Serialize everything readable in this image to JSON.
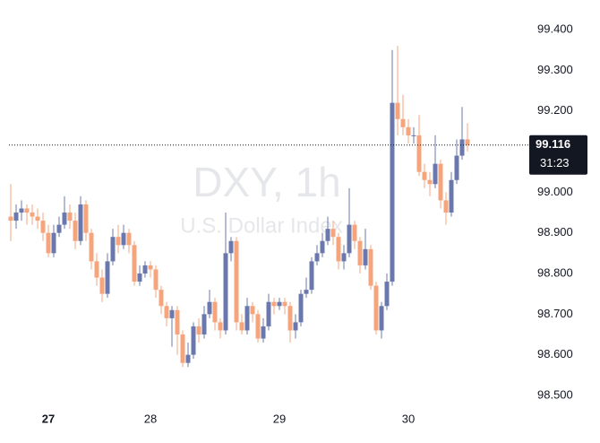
{
  "chart_data": {
    "type": "candlestick",
    "watermark_title": "DXY, 1h",
    "watermark_subtitle": "U.S. Dollar Index",
    "categories": [
      null,
      null,
      null,
      null,
      null,
      null,
      null,
      "27",
      null,
      null,
      null,
      null,
      null,
      null,
      null,
      null,
      null,
      null,
      null,
      null,
      null,
      null,
      null,
      null,
      null,
      null,
      "28",
      null,
      null,
      null,
      null,
      null,
      null,
      null,
      null,
      null,
      null,
      null,
      null,
      null,
      null,
      null,
      null,
      null,
      null,
      null,
      null,
      null,
      null,
      null,
      "29",
      null,
      null,
      null,
      null,
      null,
      null,
      null,
      null,
      null,
      null,
      null,
      null,
      null,
      null,
      null,
      null,
      null,
      null,
      null,
      null,
      null,
      null,
      null,
      "30",
      null,
      null,
      null,
      null,
      null,
      null,
      null,
      null,
      null,
      null,
      null
    ],
    "open": [
      98.94,
      98.93,
      98.95,
      98.96,
      98.95,
      98.94,
      98.93,
      98.9,
      98.85,
      98.9,
      98.92,
      98.95,
      98.93,
      98.88,
      98.97,
      98.9,
      98.83,
      98.79,
      98.75,
      98.83,
      98.89,
      98.87,
      98.9,
      98.87,
      98.78,
      98.8,
      98.82,
      98.81,
      98.76,
      98.72,
      98.69,
      98.71,
      98.65,
      98.58,
      98.6,
      98.67,
      98.65,
      98.7,
      98.73,
      98.68,
      98.66,
      98.85,
      98.88,
      98.68,
      98.66,
      98.72,
      98.7,
      98.64,
      98.67,
      98.73,
      98.72,
      98.73,
      98.72,
      98.66,
      98.68,
      98.75,
      98.76,
      98.83,
      98.85,
      98.88,
      98.91,
      98.89,
      98.83,
      98.85,
      98.92,
      98.88,
      98.82,
      98.86,
      98.77,
      98.66,
      98.72,
      98.78,
      99.22,
      99.18,
      99.16,
      99.14,
      99.14,
      99.05,
      99.03,
      99.02,
      99.07,
      98.98,
      98.95,
      99.03,
      99.09,
      99.13
    ],
    "high": [
      99.02,
      98.97,
      98.98,
      98.97,
      98.97,
      98.96,
      98.95,
      98.92,
      98.92,
      98.94,
      98.99,
      98.97,
      98.95,
      98.99,
      98.98,
      98.91,
      98.85,
      98.81,
      98.85,
      98.91,
      98.92,
      98.92,
      98.91,
      98.88,
      98.82,
      98.83,
      98.83,
      98.82,
      98.77,
      98.73,
      98.72,
      98.72,
      98.66,
      98.63,
      98.68,
      98.69,
      98.72,
      98.76,
      98.74,
      98.69,
      98.95,
      98.89,
      98.89,
      98.7,
      98.74,
      98.73,
      98.71,
      98.69,
      98.75,
      98.74,
      98.74,
      98.74,
      98.73,
      98.7,
      98.76,
      98.79,
      98.84,
      98.87,
      98.9,
      98.94,
      98.93,
      98.9,
      98.87,
      99.01,
      98.93,
      98.89,
      98.91,
      98.87,
      98.78,
      98.73,
      98.8,
      99.35,
      99.36,
      99.24,
      99.18,
      99.16,
      99.19,
      99.07,
      99.05,
      99.14,
      99.08,
      99.0,
      99.05,
      99.13,
      99.21,
      99.17
    ],
    "low": [
      98.88,
      98.91,
      98.93,
      98.92,
      98.92,
      98.91,
      98.88,
      98.84,
      98.84,
      98.89,
      98.91,
      98.91,
      98.86,
      98.87,
      98.88,
      98.81,
      98.77,
      98.73,
      98.74,
      98.82,
      98.85,
      98.86,
      98.85,
      98.77,
      98.77,
      98.79,
      98.79,
      98.74,
      98.7,
      98.67,
      98.62,
      98.6,
      98.57,
      98.57,
      98.59,
      98.63,
      98.64,
      98.69,
      98.66,
      98.64,
      98.65,
      98.83,
      98.66,
      98.65,
      98.65,
      98.68,
      98.63,
      98.63,
      98.66,
      98.7,
      98.71,
      98.7,
      98.63,
      98.64,
      98.67,
      98.74,
      98.75,
      98.82,
      98.84,
      98.87,
      98.87,
      98.81,
      98.81,
      98.84,
      98.86,
      98.8,
      98.81,
      98.76,
      98.65,
      98.64,
      98.71,
      98.77,
      99.14,
      99.14,
      99.12,
      99.12,
      99.04,
      99.01,
      98.99,
      99.01,
      98.96,
      98.92,
      98.94,
      99.02,
      99.08,
      99.1
    ],
    "close": [
      98.93,
      98.95,
      98.96,
      98.95,
      98.94,
      98.93,
      98.9,
      98.85,
      98.9,
      98.92,
      98.95,
      98.93,
      98.88,
      98.97,
      98.9,
      98.83,
      98.79,
      98.75,
      98.83,
      98.89,
      98.87,
      98.9,
      98.87,
      98.78,
      98.8,
      98.82,
      98.81,
      98.76,
      98.72,
      98.69,
      98.71,
      98.65,
      98.58,
      98.6,
      98.67,
      98.65,
      98.7,
      98.73,
      98.68,
      98.66,
      98.85,
      98.88,
      98.68,
      98.66,
      98.72,
      98.7,
      98.64,
      98.67,
      98.73,
      98.72,
      98.73,
      98.72,
      98.66,
      98.68,
      98.75,
      98.76,
      98.83,
      98.85,
      98.88,
      98.91,
      98.89,
      98.83,
      98.85,
      98.92,
      98.88,
      98.82,
      98.86,
      98.77,
      98.66,
      98.72,
      98.78,
      99.22,
      99.18,
      99.16,
      99.14,
      99.14,
      99.05,
      99.03,
      99.02,
      99.07,
      98.98,
      98.95,
      99.03,
      99.09,
      99.13,
      99.116
    ],
    "up_color": "#6b78ad",
    "down_color": "#f5a47c",
    "ylim": [
      98.469,
      99.473
    ],
    "yticks": [
      {
        "value": 98.5,
        "label": "98.500"
      },
      {
        "value": 98.6,
        "label": "98.600"
      },
      {
        "value": 98.7,
        "label": "98.700"
      },
      {
        "value": 98.8,
        "label": "98.800"
      },
      {
        "value": 98.9,
        "label": "98.900"
      },
      {
        "value": 99.0,
        "label": "99.000"
      },
      {
        "value": 99.1,
        "label": "99.100"
      },
      {
        "value": 99.2,
        "label": "99.200"
      },
      {
        "value": 99.3,
        "label": "99.300"
      },
      {
        "value": 99.4,
        "label": "99.400"
      }
    ],
    "last_price": 99.116,
    "countdown": "31:23"
  }
}
